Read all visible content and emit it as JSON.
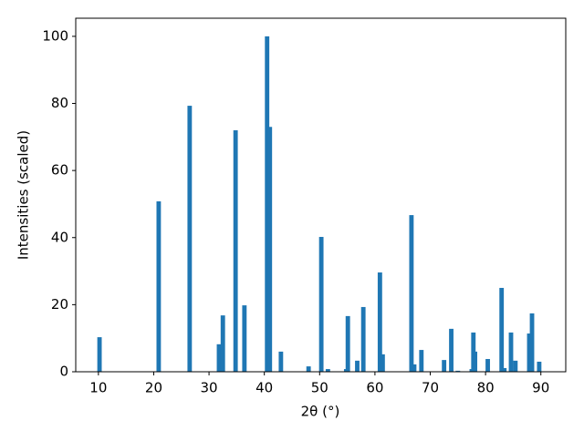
{
  "chart_data": {
    "type": "bar",
    "x_label": "2θ (°)",
    "y_label": "Intensities (scaled)",
    "x": [
      10.2,
      20.9,
      26.5,
      31.8,
      32.5,
      34.8,
      36.4,
      40.5,
      41.0,
      43.0,
      48.0,
      50.3,
      51.5,
      54.8,
      55.1,
      56.8,
      57.9,
      60.9,
      61.4,
      66.6,
      67.1,
      68.4,
      72.5,
      73.8,
      75.0,
      77.5,
      77.8,
      78.1,
      80.4,
      82.9,
      83.4,
      84.6,
      85.4,
      87.9,
      88.4,
      89.7
    ],
    "values": [
      10.3,
      50.8,
      79.3,
      8.2,
      16.8,
      72,
      19.8,
      100,
      73,
      6.0,
      1.6,
      40.2,
      0.8,
      0.8,
      16.6,
      3.3,
      19.3,
      29.6,
      5.2,
      46.7,
      2.2,
      6.5,
      3.5,
      12.8,
      0.3,
      0.8,
      11.7,
      6.0,
      3.8,
      25.0,
      1.1,
      11.7,
      3.3,
      11.4,
      17.4,
      3.0
    ],
    "color": "#1f77b4",
    "xlim": [
      5.9,
      94.5
    ],
    "xticks": [
      10,
      20,
      30,
      40,
      50,
      60,
      70,
      80,
      90
    ],
    "ylim": [
      0,
      105.4
    ],
    "yticks": [
      0,
      20,
      40,
      60,
      80,
      100
    ]
  }
}
